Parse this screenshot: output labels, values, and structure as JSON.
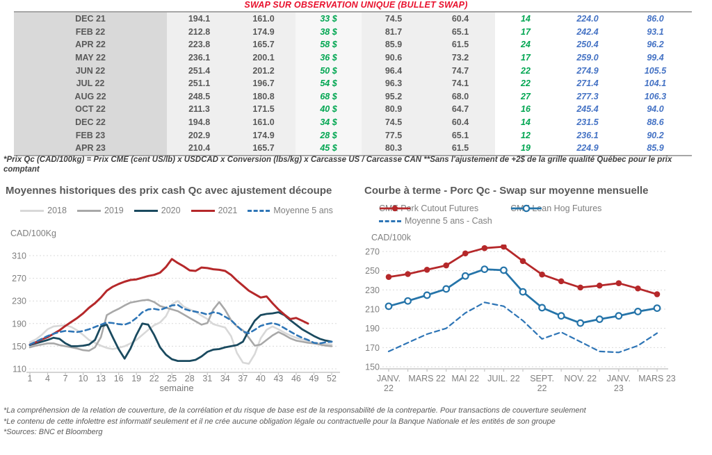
{
  "page": {
    "title": "SWAP SUR OBSERVATION UNIQUE (BULLET SWAP)",
    "table_note": "*Prix Qc (CAD/100kg) = Prix CME (cent US/lb) x USDCAD x Conversion (lbs/kg) x Carcasse US / Carcasse CAN **Sans l'ajustement de +2$ de la grille qualité Québec pour le prix comptant",
    "footnotes": [
      "*La compréhension de la relation de couverture, de la corrélation et du risque de base est de la responsabilité de la contrepartie. Pour transactions de couverture seulement",
      "*Le contenu de cette infolettre est informatif seulement et il ne crée aucune obligation légale ou contractuelle pour la Banque Nationale et les entités de son groupe",
      "*Sources: BNC et Bloomberg"
    ]
  },
  "colors": {
    "title_red": "#e8112d",
    "green_text": "#00a651",
    "blue_text": "#4472c4",
    "gray_text": "#595959"
  },
  "table": {
    "columns": [
      "month",
      "qc_swap",
      "qc_5y",
      "diff_cad",
      "us_swap",
      "us_5y",
      "diff_us",
      "cutout",
      "hog"
    ],
    "rows": [
      [
        "DEC 21",
        "194.1",
        "161.0",
        "33 $",
        "74.5",
        "60.4",
        "14",
        "224.0",
        "86.0"
      ],
      [
        "FEB 22",
        "212.8",
        "174.9",
        "38 $",
        "81.7",
        "65.1",
        "17",
        "242.4",
        "93.1"
      ],
      [
        "APR 22",
        "223.8",
        "165.7",
        "58 $",
        "85.9",
        "61.5",
        "24",
        "250.4",
        "96.2"
      ],
      [
        "MAY 22",
        "236.1",
        "200.1",
        "36 $",
        "90.6",
        "73.2",
        "17",
        "259.0",
        "99.4"
      ],
      [
        "JUN 22",
        "251.4",
        "201.2",
        "50 $",
        "96.4",
        "74.7",
        "22",
        "274.9",
        "105.5"
      ],
      [
        "JUL 22",
        "251.1",
        "196.7",
        "54 $",
        "96.3",
        "74.1",
        "22",
        "271.4",
        "104.1"
      ],
      [
        "AUG 22",
        "248.5",
        "180.8",
        "68 $",
        "95.2",
        "68.0",
        "27",
        "277.3",
        "106.3"
      ],
      [
        "OCT 22",
        "211.3",
        "171.5",
        "40 $",
        "80.9",
        "64.7",
        "16",
        "245.4",
        "94.0"
      ],
      [
        "DEC 22",
        "194.8",
        "161.0",
        "34 $",
        "74.5",
        "60.4",
        "14",
        "231.5",
        "88.6"
      ],
      [
        "FEB 23",
        "202.9",
        "174.9",
        "28 $",
        "77.5",
        "65.1",
        "12",
        "236.1",
        "90.2"
      ],
      [
        "APR 23",
        "210.4",
        "165.7",
        "45 $",
        "80.3",
        "61.5",
        "19",
        "224.9",
        "85.9"
      ]
    ]
  },
  "chart_data": [
    {
      "type": "line",
      "title": "Moyennes historiques des prix cash Qc avec ajustement découpe",
      "ylabel": "CAD/100Kg",
      "xlabel": "semaine",
      "ylim": [
        110,
        310
      ],
      "yticks": [
        110,
        150,
        190,
        230,
        270,
        310
      ],
      "x_start": 1,
      "x_count": 52,
      "xticks": [
        1,
        4,
        7,
        10,
        13,
        16,
        19,
        22,
        25,
        28,
        31,
        34,
        37,
        40,
        43,
        46,
        49,
        52
      ],
      "grid": true,
      "legend_position": "top",
      "series": [
        {
          "name": "2018",
          "color": "#d8d8d8",
          "style": "solid",
          "width": 2.6,
          "values": [
            157,
            162,
            170,
            180,
            185,
            186,
            187,
            184,
            178,
            170,
            161,
            156,
            151,
            147,
            145,
            147,
            150,
            155,
            161,
            170,
            179,
            187,
            192,
            203,
            224,
            230,
            220,
            215,
            211,
            204,
            198,
            189,
            186,
            183,
            168,
            138,
            121,
            119,
            136,
            164,
            179,
            185,
            180,
            174,
            169,
            165,
            162,
            159,
            156,
            155,
            154,
            153
          ]
        },
        {
          "name": "2019",
          "color": "#a8a8a8",
          "style": "solid",
          "width": 2.6,
          "values": [
            148,
            151,
            153,
            155,
            155,
            152,
            150,
            148,
            146,
            143,
            142,
            148,
            166,
            205,
            211,
            216,
            222,
            227,
            229,
            231,
            232,
            228,
            221,
            218,
            215,
            212,
            206,
            200,
            194,
            188,
            191,
            215,
            228,
            214,
            196,
            185,
            178,
            165,
            151,
            153,
            161,
            169,
            175,
            170,
            164,
            160,
            158,
            156,
            155,
            153,
            151,
            150
          ]
        },
        {
          "name": "2020",
          "color": "#1a4a5f",
          "style": "solid",
          "width": 2.8,
          "values": [
            152,
            155,
            158,
            161,
            165,
            163,
            155,
            150,
            150,
            151,
            153,
            161,
            185,
            188,
            166,
            145,
            128,
            146,
            170,
            190,
            188,
            170,
            148,
            135,
            127,
            124,
            124,
            124,
            126,
            132,
            140,
            144,
            145,
            148,
            150,
            152,
            158,
            178,
            195,
            205,
            207,
            208,
            210,
            205,
            196,
            188,
            180,
            174,
            168,
            163,
            160,
            158
          ]
        },
        {
          "name": "2021",
          "color": "#b5282a",
          "style": "solid",
          "width": 3,
          "values": [
            153,
            157,
            162,
            166,
            172,
            178,
            186,
            193,
            200,
            208,
            218,
            226,
            236,
            248,
            255,
            260,
            264,
            267,
            268,
            271,
            274,
            276,
            280,
            290,
            304,
            297,
            291,
            284,
            283,
            289,
            288,
            286,
            285,
            283,
            276,
            266,
            257,
            248,
            242,
            236,
            238,
            226,
            215,
            206,
            198,
            200,
            195,
            190
          ]
        },
        {
          "name": "Moyenne 5 ans",
          "color": "#2e75b6",
          "style": "dashed",
          "width": 2.6,
          "values": [
            153,
            158,
            163,
            168,
            172,
            175,
            177,
            176,
            175,
            177,
            180,
            184,
            188,
            192,
            191,
            189,
            188,
            192,
            200,
            210,
            215,
            216,
            214,
            218,
            222,
            223,
            216,
            213,
            211,
            209,
            206,
            210,
            208,
            202,
            196,
            186,
            176,
            173,
            179,
            186,
            189,
            191,
            188,
            182,
            176,
            170,
            165,
            161,
            156,
            155,
            157,
            158
          ]
        }
      ]
    },
    {
      "type": "line",
      "title": "Courbe à terme - Porc Qc - Swap sur moyenne mensuelle",
      "ylabel": "CAD/100k",
      "ylim": [
        150,
        270
      ],
      "yticks": [
        150,
        170,
        190,
        210,
        230,
        250,
        270
      ],
      "x_count": 15,
      "xticks": [
        {
          "index": 0,
          "lines": [
            "JANV.",
            "22"
          ]
        },
        {
          "index": 2,
          "lines": [
            "MARS 22"
          ]
        },
        {
          "index": 4,
          "lines": [
            "MAI 22"
          ]
        },
        {
          "index": 6,
          "lines": [
            "JUIL. 22"
          ]
        },
        {
          "index": 8,
          "lines": [
            "SEPT.",
            "22"
          ]
        },
        {
          "index": 10,
          "lines": [
            "NOV. 22"
          ]
        },
        {
          "index": 12,
          "lines": [
            "JANV.",
            "23"
          ]
        },
        {
          "index": 14,
          "lines": [
            "MARS 23"
          ]
        }
      ],
      "grid": true,
      "legend_position": "top",
      "series": [
        {
          "name": "CME Pork Cutout Futures",
          "color": "#b5282a",
          "style": "solid",
          "marker": "filled",
          "width": 2.8,
          "values": [
            243.5,
            246.5,
            251,
            255.5,
            268,
            273.5,
            275,
            260,
            246,
            239,
            232.5,
            234.5,
            237,
            231.5,
            225.5
          ]
        },
        {
          "name": "CME Lean Hog Futures",
          "color": "#2574a9",
          "style": "solid",
          "marker": "open",
          "width": 2.8,
          "values": [
            213,
            218.5,
            224.5,
            231,
            244.5,
            251.5,
            250.5,
            228,
            211.5,
            203,
            195.5,
            199.5,
            203,
            207.5,
            211
          ]
        },
        {
          "name": "Moyenne 5 ans - Cash",
          "color": "#2e75b6",
          "style": "dashed",
          "width": 2.2,
          "values": [
            166,
            175,
            184,
            190,
            206,
            217,
            213,
            198,
            179,
            186,
            176,
            166,
            165,
            172,
            185
          ]
        }
      ]
    }
  ]
}
